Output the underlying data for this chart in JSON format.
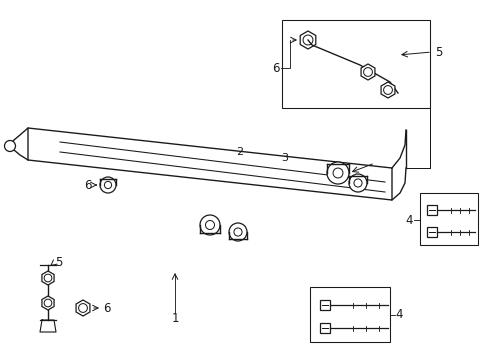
{
  "bg_color": "#ffffff",
  "line_color": "#1a1a1a",
  "lw": 0.9,
  "fig_w": 4.9,
  "fig_h": 3.6,
  "dpi": 100
}
